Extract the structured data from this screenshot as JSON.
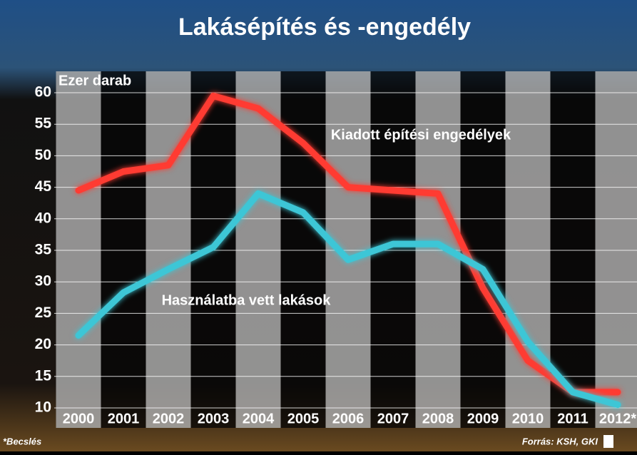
{
  "chart_data": {
    "type": "line",
    "title": "Lakásépítés és -engedély",
    "y_label": "Ezer darab",
    "categories": [
      "2000",
      "2001",
      "2002",
      "2003",
      "2004",
      "2005",
      "2006",
      "2007",
      "2008",
      "2009",
      "2010",
      "2011",
      "2012*"
    ],
    "series": [
      {
        "name": "Kiadott építési engedélyek",
        "color": "#ff3b30",
        "values": [
          44.5,
          47.5,
          48.5,
          59.5,
          57.5,
          52,
          45,
          44.5,
          44,
          29,
          17.5,
          12.5,
          12.5
        ]
      },
      {
        "name": "Használatba vett lakások",
        "color": "#3cc6d6",
        "values": [
          21.5,
          28.3,
          32,
          35.5,
          44,
          41,
          33.5,
          36,
          36,
          32,
          20.5,
          12.5,
          10.5
        ]
      }
    ],
    "ylim": [
      10,
      60
    ],
    "yticks": [
      10,
      15,
      20,
      25,
      30,
      35,
      40,
      45,
      50,
      55,
      60
    ],
    "grid": true,
    "footnote": "*Becslés",
    "source": "Forrás: KSH, GKI"
  }
}
